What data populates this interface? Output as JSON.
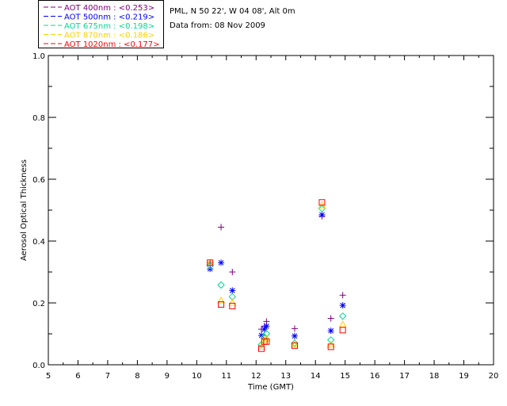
{
  "info": {
    "site": "PML, N 50 22', W 04 08', Alt 0m",
    "date": "Data from: 08 Nov 2009"
  },
  "chart_data": {
    "type": "scatter",
    "title": "",
    "xlabel": "Time (GMT)",
    "ylabel": "Aerosol Optical Thickness",
    "xlim": [
      5,
      20
    ],
    "ylim": [
      0,
      1.0
    ],
    "xticks": [
      5,
      6,
      7,
      8,
      9,
      10,
      11,
      12,
      13,
      14,
      15,
      16,
      17,
      18,
      19,
      20
    ],
    "yticks": [
      0.0,
      0.2,
      0.4,
      0.6,
      0.8,
      1.0
    ],
    "ytick_labels": [
      "0.0",
      "0.2",
      "0.4",
      "0.6",
      "0.8",
      "1.0"
    ],
    "x": [
      10.45,
      10.82,
      11.2,
      12.18,
      12.28,
      12.35,
      13.3,
      14.22,
      14.52,
      14.92
    ],
    "series": [
      {
        "name": "AOT  400nm : <0.253>",
        "color": "#800080",
        "marker": "plus",
        "values": [
          0.33,
          0.445,
          0.3,
          0.115,
          0.125,
          0.14,
          0.117,
          0.48,
          0.15,
          0.225
        ]
      },
      {
        "name": "AOT  500nm : <0.219>",
        "color": "#0000ff",
        "marker": "asterisk",
        "values": [
          0.31,
          0.33,
          0.24,
          0.095,
          0.115,
          0.125,
          0.093,
          0.485,
          0.11,
          0.192
        ]
      },
      {
        "name": "AOT  675nm : <0.198>",
        "color": "#00d890",
        "marker": "diamond",
        "values": [
          0.32,
          0.258,
          0.22,
          0.065,
          0.09,
          0.1,
          0.07,
          0.505,
          0.08,
          0.157
        ]
      },
      {
        "name": "AOT  870nm : <0.186>",
        "color": "#ffd000",
        "marker": "triangle",
        "values": [
          0.33,
          0.208,
          0.2,
          0.058,
          0.08,
          0.085,
          0.065,
          0.515,
          0.065,
          0.13
        ]
      },
      {
        "name": "AOT 1020nm : <0.177>",
        "color": "#ff0000",
        "marker": "square",
        "values": [
          0.33,
          0.195,
          0.19,
          0.052,
          0.075,
          0.075,
          0.062,
          0.525,
          0.058,
          0.112
        ]
      }
    ]
  }
}
